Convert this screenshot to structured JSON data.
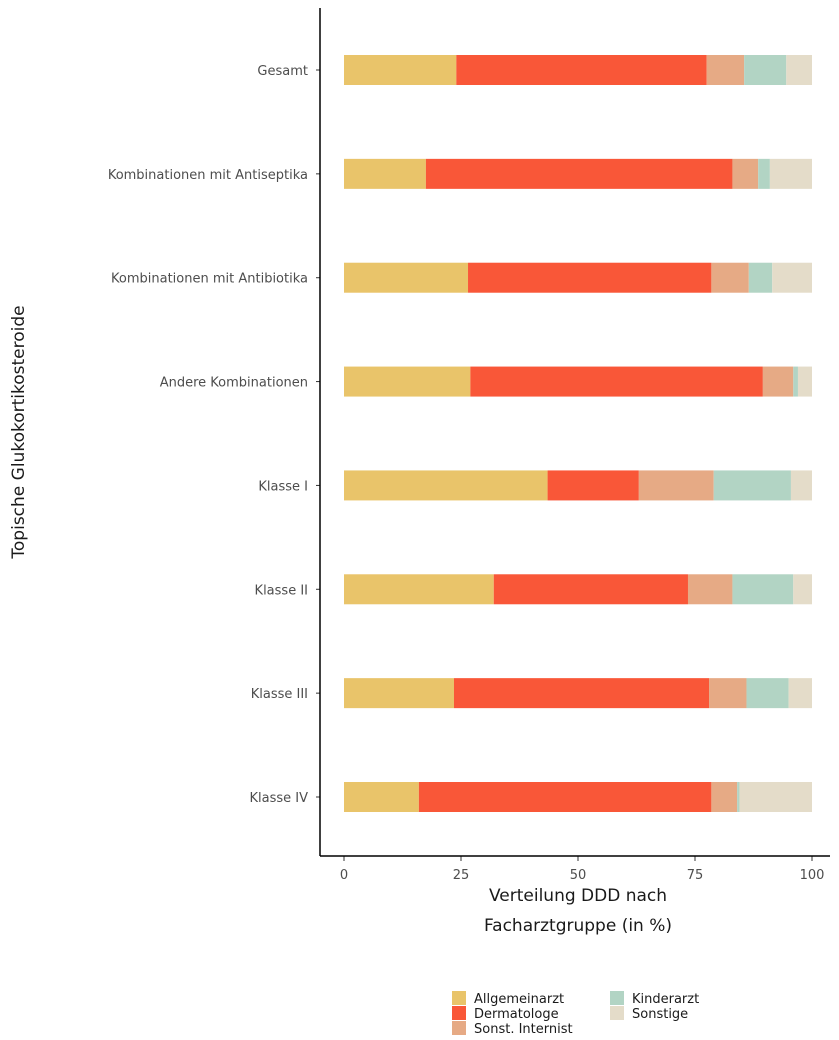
{
  "chart_data": {
    "type": "bar",
    "orientation": "horizontal",
    "stacked": true,
    "categories": [
      "Gesamt",
      "Kombinationen mit Antiseptika",
      "Kombinationen mit Antibiotika",
      "Andere Kombinationen",
      "Klasse I",
      "Klasse II",
      "Klasse III",
      "Klasse IV"
    ],
    "series": [
      {
        "name": "Allgemeinarzt",
        "color": "#E9C46A",
        "values": [
          24,
          17.5,
          26.5,
          27,
          43.5,
          32,
          23.5,
          16
        ]
      },
      {
        "name": "Dermatologe",
        "color": "#F95738",
        "values": [
          53.5,
          65.5,
          52,
          62.5,
          19.5,
          41.5,
          54.5,
          62.5
        ]
      },
      {
        "name": "Sonst. Internist",
        "color": "#E6AA85",
        "values": [
          8,
          5.5,
          8,
          6.5,
          16,
          9.5,
          8,
          5.5
        ]
      },
      {
        "name": "Kinderarzt",
        "color": "#B2D4C4",
        "values": [
          9,
          2.5,
          5,
          1,
          16.5,
          13,
          9,
          0.5
        ]
      },
      {
        "name": "Sonstige",
        "color": "#E4DCC9",
        "values": [
          5.5,
          9,
          8.5,
          3,
          4.5,
          4,
          5,
          15.5
        ]
      }
    ],
    "xlabel": "Verteilung DDD nach\nFacharztgruppe (in %)",
    "xlabel_lines": [
      "Verteilung DDD nach",
      "Facharztgruppe (in %)"
    ],
    "ylabel": "Topische Glukokortikosteroide",
    "xlim": [
      0,
      100
    ],
    "xticks": [
      0,
      25,
      50,
      75,
      100
    ],
    "xtick_labels": [
      "0",
      "25",
      "50",
      "75",
      "100"
    ],
    "grid": false,
    "legend_position": "bottom",
    "legend": [
      "Allgemeinarzt",
      "Dermatologe",
      "Sonst. Internist",
      "Kinderarzt",
      "Sonstige"
    ]
  }
}
